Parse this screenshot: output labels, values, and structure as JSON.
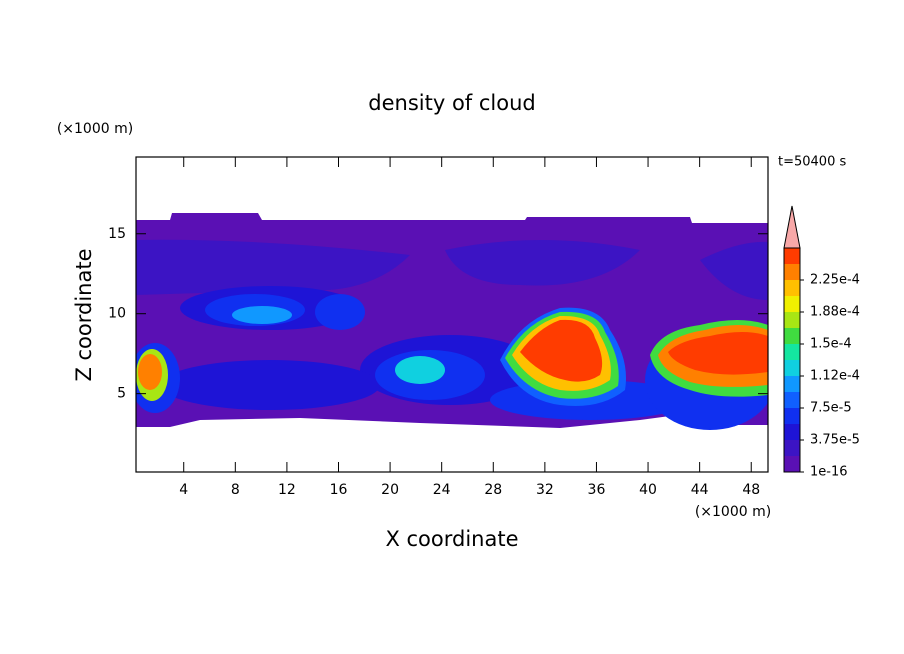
{
  "chart_data": {
    "type": "contour",
    "title": "density of cloud",
    "x_label": "X coordinate",
    "y_label": "Z coordinate",
    "x_unit": "(×1000 m)",
    "y_unit": "(×1000 m)",
    "annotation": "t=50400 s",
    "xlim": [
      0.3,
      49.3
    ],
    "ylim": [
      0.1,
      19.8
    ],
    "xticks": [
      4,
      8,
      12,
      16,
      20,
      24,
      28,
      32,
      36,
      40,
      44,
      48
    ],
    "yticks": [
      5,
      10,
      15
    ],
    "clim": [
      1e-16,
      0.0002625
    ],
    "cticks": [
      {
        "value": 1e-16,
        "label": "1e-16"
      },
      {
        "value": 3.75e-05,
        "label": "3.75e-5"
      },
      {
        "value": 7.5e-05,
        "label": "7.5e-5"
      },
      {
        "value": 0.0001125,
        "label": "1.12e-4"
      },
      {
        "value": 0.00015,
        "label": "1.5e-4"
      },
      {
        "value": 0.0001875,
        "label": "1.88e-4"
      },
      {
        "value": 0.000225,
        "label": "2.25e-4"
      }
    ],
    "colors": [
      "#5a10b4",
      "#3c14c4",
      "#1e14d6",
      "#1030f0",
      "#1060ff",
      "#1098ff",
      "#10d0e0",
      "#14e6a0",
      "#40dc40",
      "#a8e614",
      "#f0f000",
      "#ffc000",
      "#ff8000",
      "#ff3c00"
    ],
    "extend_color": "#f8a8a8"
  }
}
